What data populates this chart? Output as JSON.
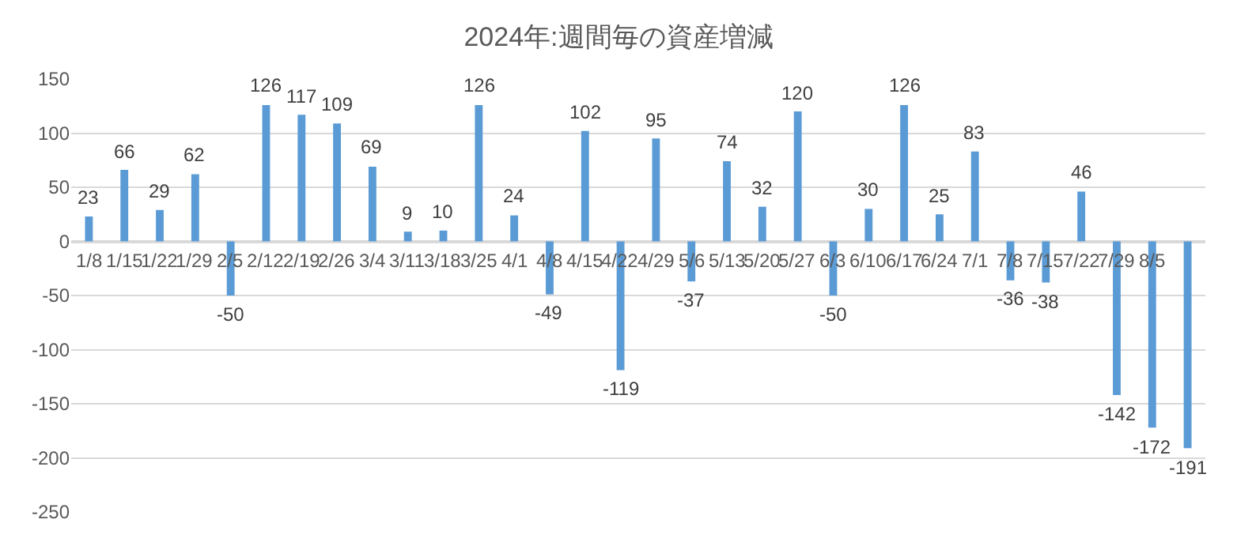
{
  "chart_data": {
    "type": "bar",
    "title": "2024年:週間毎の資産増減",
    "categories": [
      "1/8",
      "1/15",
      "1/22",
      "1/29",
      "2/5",
      "2/12",
      "2/19",
      "2/26",
      "3/4",
      "3/11",
      "3/18",
      "3/25",
      "4/1",
      "4/8",
      "4/15",
      "4/22",
      "4/29",
      "5/6",
      "5/13",
      "5/20",
      "5/27",
      "6/3",
      "6/10",
      "6/17",
      "6/24",
      "7/1",
      "7/8",
      "7/15",
      "7/22",
      "7/29",
      "8/5",
      null
    ],
    "values": [
      23,
      66,
      29,
      62,
      -50,
      126,
      117,
      109,
      69,
      9,
      10,
      126,
      24,
      -49,
      102,
      -119,
      95,
      -37,
      74,
      32,
      120,
      -50,
      30,
      126,
      25,
      83,
      -36,
      -38,
      46,
      -142,
      -172,
      -191
    ],
    "color": "#5b9bd5",
    "ylim": [
      -250,
      150
    ],
    "yticks": [
      -250,
      -200,
      -150,
      -100,
      -50,
      0,
      50,
      100,
      150
    ],
    "grid": "y",
    "data_labels": true
  }
}
